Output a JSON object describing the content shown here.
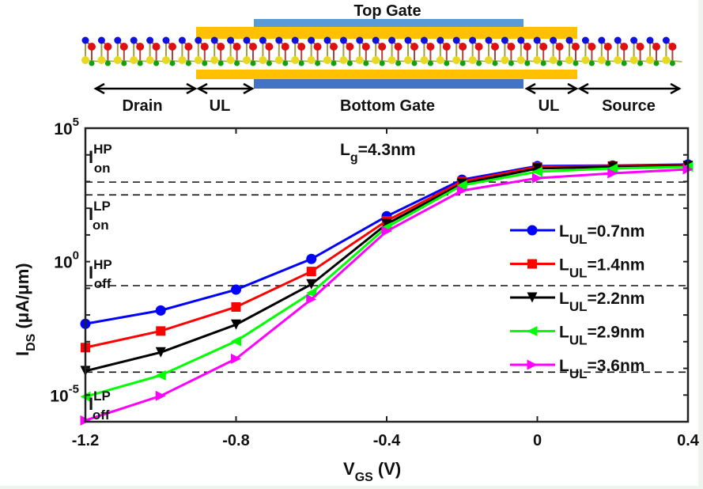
{
  "schematic": {
    "top_gate_label": "Top Gate",
    "bottom_gate_label": "Bottom Gate",
    "regions": [
      "Drain",
      "UL",
      "UL",
      "Source"
    ],
    "colors": {
      "gate": "#5b9bd5",
      "gate_dark": "#4472c4",
      "oxide": "#ffc000",
      "atom_top": "#1010e0",
      "atom_mid": "#e01010",
      "atom_low": "#e8d820",
      "atom_bottom": "#10a010"
    }
  },
  "chart_data": {
    "type": "line",
    "title": "",
    "annotation": {
      "base": "L",
      "sub": "g",
      "rest": "=4.3nm"
    },
    "xlabel": {
      "base": "V",
      "sub": "GS",
      "rest": " (V)"
    },
    "ylabel": {
      "base": "I",
      "sub": "DS",
      "rest": " (μA/μm)"
    },
    "yscale": "log",
    "xlim": [
      -1.2,
      0.4
    ],
    "ylim_log10": [
      -6,
      5
    ],
    "x_ticks": [
      "-1.2",
      "-0.8",
      "-0.4",
      "0",
      "0.4"
    ],
    "x_tick_values": [
      -1.2,
      -0.8,
      -0.4,
      0,
      0.4
    ],
    "y_ticks": [
      {
        "base": "10",
        "exp": "5",
        "log10": 5
      },
      {
        "base": "10",
        "exp": "0",
        "log10": 0
      },
      {
        "base": "10",
        "exp": "-5",
        "log10": -5
      }
    ],
    "x": [
      -1.2,
      -1.0,
      -0.8,
      -0.6,
      -0.4,
      -0.2,
      0.0,
      0.2,
      0.4
    ],
    "series": [
      {
        "name": "L_UL=0.7nm",
        "label_sub": "UL",
        "label_rest": "=0.7nm",
        "color": "#0000ff",
        "marker": "circle",
        "log10_values": [
          -2.33,
          -1.83,
          -1.05,
          0.1,
          1.7,
          3.07,
          3.58,
          3.6,
          3.64
        ]
      },
      {
        "name": "L_UL=1.4nm",
        "label_sub": "UL",
        "label_rest": "=1.4nm",
        "color": "#ff0000",
        "marker": "square",
        "log10_values": [
          -3.22,
          -2.6,
          -1.7,
          -0.37,
          1.53,
          3.0,
          3.55,
          3.58,
          3.6
        ]
      },
      {
        "name": "L_UL=2.2nm",
        "label_sub": "UL",
        "label_rest": "=2.2nm",
        "color": "#000000",
        "marker": "triangle-down",
        "log10_values": [
          -4.1,
          -3.4,
          -2.36,
          -0.85,
          1.41,
          2.92,
          3.49,
          3.55,
          3.58
        ]
      },
      {
        "name": "L_UL=2.9nm",
        "label_sub": "UL",
        "label_rest": "=2.9nm",
        "color": "#00ff00",
        "marker": "triangle-left",
        "log10_values": [
          -5.06,
          -4.26,
          -2.98,
          -1.17,
          1.29,
          2.86,
          3.37,
          3.49,
          3.55
        ]
      },
      {
        "name": "L_UL=3.6nm",
        "label_sub": "UL",
        "label_rest": "=3.6nm",
        "color": "#ff00ff",
        "marker": "triangle-right",
        "log10_values": [
          -5.95,
          -5.03,
          -3.64,
          -1.41,
          1.14,
          2.66,
          3.13,
          3.31,
          3.46
        ]
      }
    ],
    "reference_lines": [
      {
        "name": "I_on^HP",
        "sup": "HP",
        "sub": "on",
        "log10": 2.98
      },
      {
        "name": "I_on^LP",
        "sup": "LP",
        "sub": "on",
        "log10": 2.5
      },
      {
        "name": "I_off^HP",
        "sup": "HP",
        "sub": "off",
        "log10": -0.9
      },
      {
        "name": "I_off^LP",
        "sup": "LP",
        "sub": "off",
        "log10": -4.14
      }
    ],
    "legend_position": "right",
    "grid": false
  }
}
